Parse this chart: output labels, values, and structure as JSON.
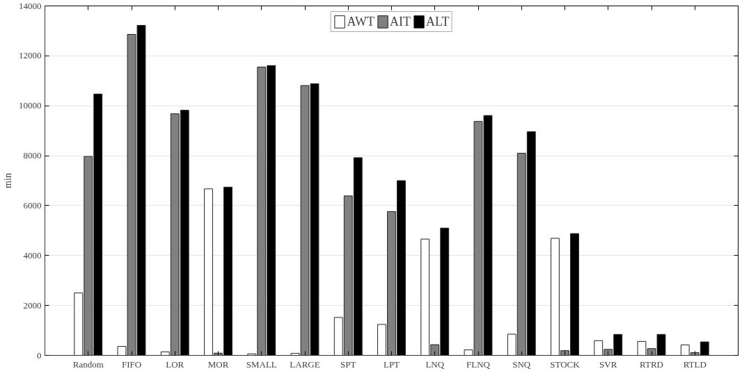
{
  "chart_data": {
    "type": "bar",
    "ylabel": "min",
    "categories": [
      "Random",
      "FIFO",
      "LOR",
      "MOR",
      "SMALL",
      "LARGE",
      "SPT",
      "LPT",
      "LNQ",
      "FLNQ",
      "SNQ",
      "STOCK",
      "SVR",
      "RTRD",
      "RTLD"
    ],
    "series": [
      {
        "name": "AWT",
        "color": "#ffffff",
        "values": [
          2500,
          360,
          140,
          6670,
          60,
          80,
          1520,
          1240,
          4660,
          220,
          850,
          4690,
          590,
          560,
          420
        ]
      },
      {
        "name": "AIT",
        "color": "#808080",
        "values": [
          7970,
          12860,
          9680,
          90,
          11550,
          10810,
          6390,
          5760,
          430,
          9370,
          8100,
          190,
          240,
          270,
          110
        ]
      },
      {
        "name": "ALT",
        "color": "#000000",
        "values": [
          10470,
          13220,
          9820,
          6740,
          11610,
          10880,
          7920,
          7000,
          5100,
          9610,
          8960,
          4880,
          840,
          840,
          540
        ]
      }
    ],
    "ylim": [
      0,
      14000
    ],
    "yticks": [
      0,
      2000,
      4000,
      6000,
      8000,
      10000,
      12000,
      14000
    ],
    "grid": "y",
    "legend": "top"
  }
}
